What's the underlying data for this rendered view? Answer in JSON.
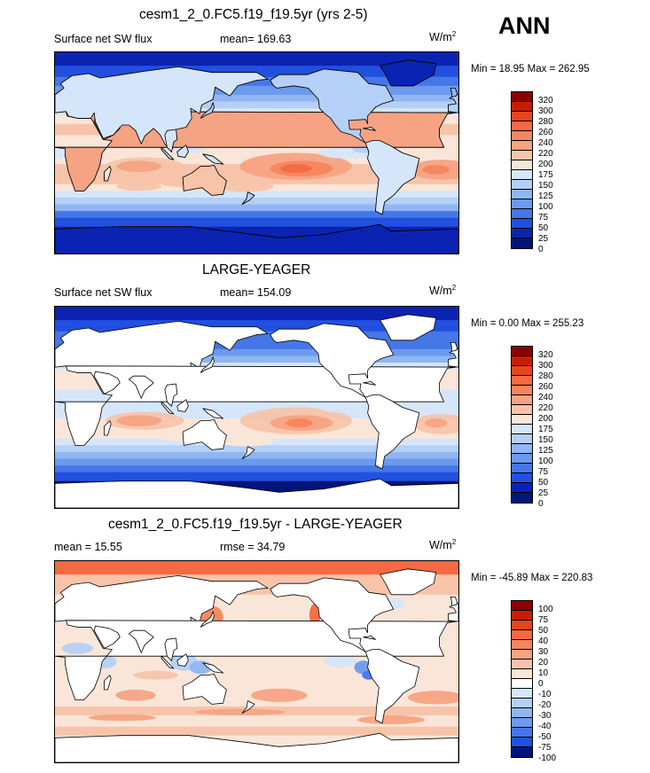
{
  "season": "ANN",
  "panels": [
    {
      "title": "cesm1_2_0.FC5.f19_f19.5yr (yrs 2-5)",
      "left_label": "Surface net SW flux",
      "center_label": "mean= 169.63",
      "units": "W/m",
      "units_sup": "2",
      "min_max": "Min =  18.95 Max = 262.95",
      "levels": [
        "320",
        "300",
        "280",
        "260",
        "240",
        "220",
        "200",
        "175",
        "150",
        "125",
        "100",
        "75",
        "50",
        "25",
        "0"
      ],
      "colors": [
        "#8a0000",
        "#c81e00",
        "#e8441e",
        "#f36a43",
        "#f5855f",
        "#f5a383",
        "#f7c4aa",
        "#fae6d8",
        "#d5e6fb",
        "#b4d0f7",
        "#90b6f2",
        "#6b9aee",
        "#4577e8",
        "#2150de",
        "#0a23b2",
        "#00147a"
      ],
      "ocean_fill": "model"
    },
    {
      "title": "LARGE-YEAGER",
      "left_label": "Surface net SW flux",
      "center_label": "mean= 154.09",
      "units": "W/m",
      "units_sup": "2",
      "min_max": "Min =   0.00 Max = 255.23",
      "levels": [
        "320",
        "300",
        "280",
        "260",
        "240",
        "220",
        "200",
        "175",
        "150",
        "125",
        "100",
        "75",
        "50",
        "25",
        "0"
      ],
      "colors": [
        "#8a0000",
        "#c81e00",
        "#e8441e",
        "#f36a43",
        "#f5855f",
        "#f5a383",
        "#f7c4aa",
        "#fae6d8",
        "#d5e6fb",
        "#b4d0f7",
        "#90b6f2",
        "#6b9aee",
        "#4577e8",
        "#2150de",
        "#0a23b2",
        "#00147a"
      ],
      "ocean_fill": "obs"
    },
    {
      "title": "cesm1_2_0.FC5.f19_f19.5yr - LARGE-YEAGER",
      "left_label": "mean =  15.55",
      "center_label": "rmse =  34.79",
      "units": "W/m",
      "units_sup": "2",
      "min_max": "Min = -45.89 Max = 220.83",
      "levels": [
        "100",
        "75",
        "50",
        "40",
        "30",
        "20",
        "10",
        "0",
        "-10",
        "-20",
        "-30",
        "-40",
        "-50",
        "-75",
        "-100"
      ],
      "colors": [
        "#8a0000",
        "#c81e00",
        "#e8441e",
        "#f36a43",
        "#f5855f",
        "#f5a383",
        "#f7c4aa",
        "#fae6d8",
        "#ffffff",
        "#d5e6fb",
        "#b4d0f7",
        "#90b6f2",
        "#6b9aee",
        "#4577e8",
        "#2150de",
        "#00147a"
      ],
      "ocean_fill": "diff"
    }
  ],
  "chart_data": [
    {
      "type": "heatmap",
      "title": "cesm1_2_0.FC5.f19_f19.5yr (yrs 2-5)",
      "variable": "Surface net SW flux",
      "units": "W/m2",
      "mean": 169.63,
      "min": 18.95,
      "max": 262.95,
      "contour_levels": [
        0,
        25,
        50,
        75,
        100,
        125,
        150,
        175,
        200,
        220,
        240,
        260,
        280,
        300,
        320
      ]
    },
    {
      "type": "heatmap",
      "title": "LARGE-YEAGER",
      "variable": "Surface net SW flux",
      "units": "W/m2",
      "mean": 154.09,
      "min": 0.0,
      "max": 255.23,
      "contour_levels": [
        0,
        25,
        50,
        75,
        100,
        125,
        150,
        175,
        200,
        220,
        240,
        260,
        280,
        300,
        320
      ]
    },
    {
      "type": "heatmap",
      "title": "cesm1_2_0.FC5.f19_f19.5yr - LARGE-YEAGER",
      "units": "W/m2",
      "mean": 15.55,
      "rmse": 34.79,
      "min": -45.89,
      "max": 220.83,
      "contour_levels": [
        -100,
        -75,
        -50,
        -40,
        -30,
        -20,
        -10,
        0,
        10,
        20,
        30,
        40,
        50,
        75,
        100
      ]
    }
  ]
}
